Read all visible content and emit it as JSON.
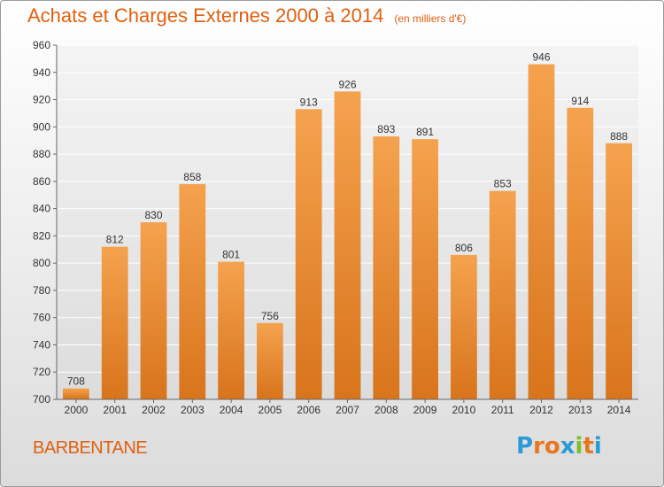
{
  "chart_data": {
    "type": "bar",
    "title": "Achats et Charges Externes 2000 à 2014",
    "unit": "(en milliers d'€)",
    "categories": [
      "2000",
      "2001",
      "2002",
      "2003",
      "2004",
      "2005",
      "2006",
      "2007",
      "2008",
      "2009",
      "2010",
      "2011",
      "2012",
      "2013",
      "2014"
    ],
    "values": [
      708,
      812,
      830,
      858,
      801,
      756,
      913,
      926,
      893,
      891,
      806,
      853,
      946,
      914,
      888
    ],
    "ylim": [
      700,
      960
    ],
    "yticks": [
      700,
      720,
      740,
      760,
      780,
      800,
      820,
      840,
      860,
      880,
      900,
      920,
      940,
      960
    ],
    "grid": true,
    "bar_color_top": "#f5a24e",
    "bar_color_bottom": "#d8741c"
  },
  "footer": {
    "place": "BARBENTANE",
    "brand_letters": [
      {
        "char": "P",
        "color": "#2b9bd6"
      },
      {
        "char": "r",
        "color": "#e8761e"
      },
      {
        "char": "o",
        "color": "#e8761e"
      },
      {
        "char": "x",
        "color": "#2b9bd6"
      },
      {
        "char": "i",
        "color": "#7bbf2a"
      },
      {
        "char": "t",
        "color": "#e8761e"
      },
      {
        "char": "i",
        "color": "#2b9bd6"
      }
    ]
  }
}
